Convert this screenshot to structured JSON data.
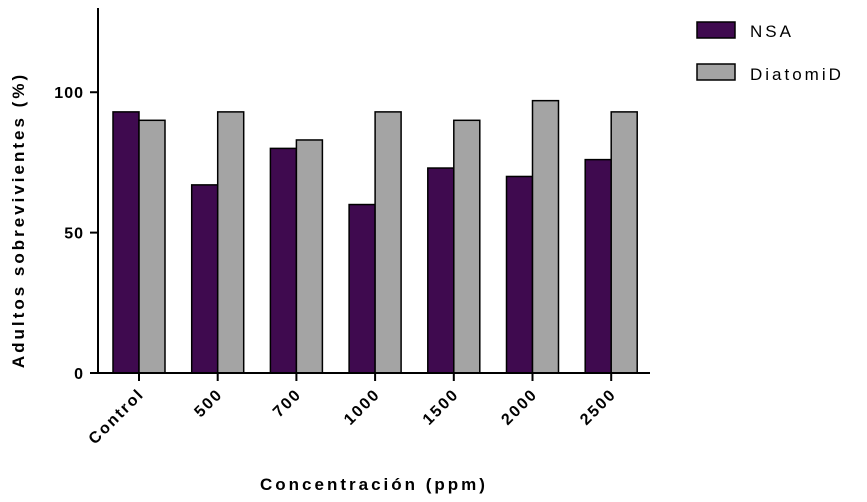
{
  "chart_data": {
    "type": "bar",
    "title": "",
    "xlabel": "Concentración (ppm)",
    "ylabel": "Adultos sobrevivientes (%)",
    "ylim": [
      0,
      130
    ],
    "yticks": [
      0,
      50,
      100
    ],
    "categories": [
      "Control",
      "500",
      "700",
      "1000",
      "1500",
      "2000",
      "2500"
    ],
    "series": [
      {
        "name": "NSA",
        "color": "#3f0a4f",
        "values": [
          93,
          67,
          80,
          60,
          73,
          70,
          76
        ]
      },
      {
        "name": "DiatomiD",
        "color": "#a4a4a4",
        "values": [
          90,
          93,
          83,
          93,
          90,
          97,
          93
        ]
      }
    ],
    "legend_position": "top-right",
    "grid": false
  }
}
